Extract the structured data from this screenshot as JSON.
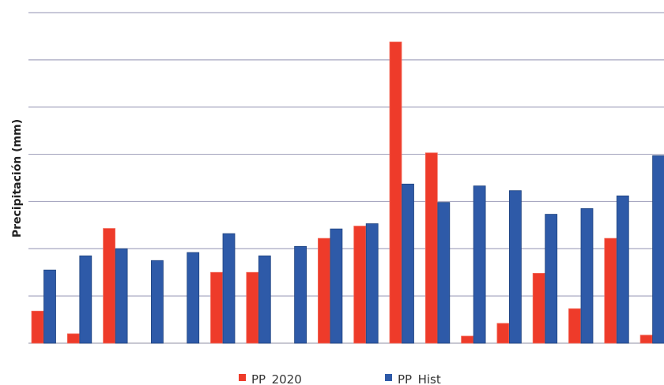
{
  "chart_data": {
    "type": "bar",
    "title": "",
    "xlabel": "",
    "ylabel": "Precipitación (mm)",
    "ylim": [
      0,
      7
    ],
    "grid": true,
    "legend_position": "bottom",
    "categories": [
      "",
      "",
      "",
      "",
      "",
      "",
      "",
      "",
      "",
      "",
      "",
      "",
      "",
      "",
      "",
      "",
      "",
      ""
    ],
    "series": [
      {
        "name": "PP_2020",
        "color": "#ee3b2a",
        "values": [
          0.68,
          0.2,
          2.43,
          0,
          0,
          1.5,
          1.5,
          0,
          2.22,
          2.48,
          6.38,
          4.03,
          0.15,
          0.42,
          1.48,
          0.73,
          2.22,
          0.17
        ]
      },
      {
        "name": "PP_Hist",
        "color": "#2e5aa8",
        "values": [
          1.55,
          1.85,
          2.0,
          1.75,
          1.92,
          2.32,
          1.85,
          2.05,
          2.42,
          2.53,
          3.37,
          2.98,
          3.33,
          3.23,
          2.73,
          2.85,
          3.12,
          3.97
        ]
      }
    ]
  }
}
